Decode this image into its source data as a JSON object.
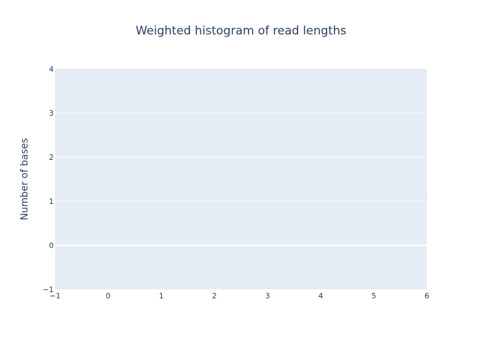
{
  "chart_data": {
    "type": "bar",
    "title": "Weighted histogram of read lengths",
    "xlabel": "",
    "ylabel": "Number of bases",
    "xlim": [
      -1,
      6
    ],
    "ylim": [
      -1,
      4
    ],
    "x_ticks": [
      "−1",
      "0",
      "1",
      "2",
      "3",
      "4",
      "5",
      "6"
    ],
    "y_ticks": [
      "−1",
      "0",
      "1",
      "2",
      "3",
      "4"
    ],
    "x_tick_values": [
      -1,
      0,
      1,
      2,
      3,
      4,
      5,
      6
    ],
    "y_tick_values": [
      -1,
      0,
      1,
      2,
      3,
      4
    ],
    "series": [],
    "grid": true,
    "legend": "none",
    "colors": {
      "plot_background": "#e5ecf6",
      "grid": "#ffffff",
      "text": "#2a3f5f"
    }
  }
}
